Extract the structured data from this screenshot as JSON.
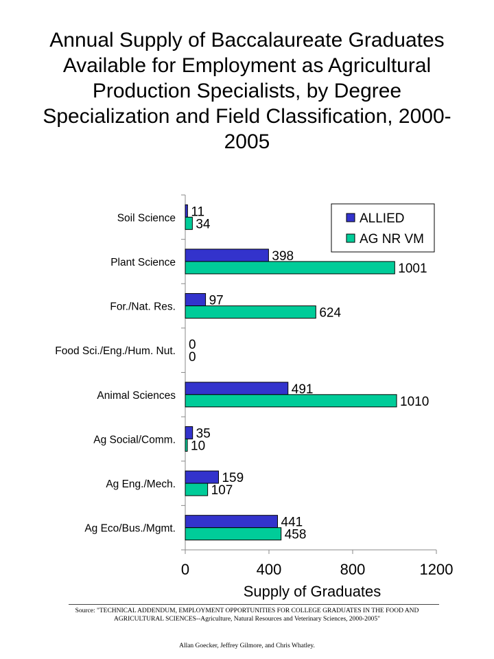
{
  "title": "Annual Supply of Baccalaureate Graduates Available for Employment as Agricultural Production Specialists, by Degree Specialization and Field Classification, 2000-2005",
  "source": "Source: \"TECHNICAL ADDENDUM, EMPLOYMENT OPPORTUNITIES FOR COLLEGE GRADUATES IN THE FOOD AND AGRICULTURAL SCIENCES--Agriculture, Natural Resources and Veterinary Sciences, 2000-2005\"",
  "authors": "Allan Goecker, Jeffrey Gilmore, and Chris Whatley.",
  "chart_data": {
    "type": "bar",
    "orientation": "horizontal",
    "categories": [
      "Soil Science",
      "Plant Science",
      "For./Nat. Res.",
      "Food Sci./Eng./Hum. Nut.",
      "Animal Sciences",
      "Ag Social/Comm.",
      "Ag Eng./Mech.",
      "Ag Eco/Bus./Mgmt."
    ],
    "series": [
      {
        "name": "ALLIED",
        "color": "#3333cc",
        "values": [
          11,
          398,
          97,
          0,
          491,
          35,
          159,
          441
        ]
      },
      {
        "name": "AG NR VM",
        "color": "#00cc99",
        "values": [
          34,
          1001,
          624,
          0,
          1010,
          10,
          107,
          458
        ]
      }
    ],
    "xlabel": "Supply of Graduates",
    "xlim": [
      0,
      1200
    ],
    "xticks": [
      0,
      400,
      800,
      1200
    ],
    "grid": false,
    "legend_position": "top-right",
    "data_labels": true
  }
}
